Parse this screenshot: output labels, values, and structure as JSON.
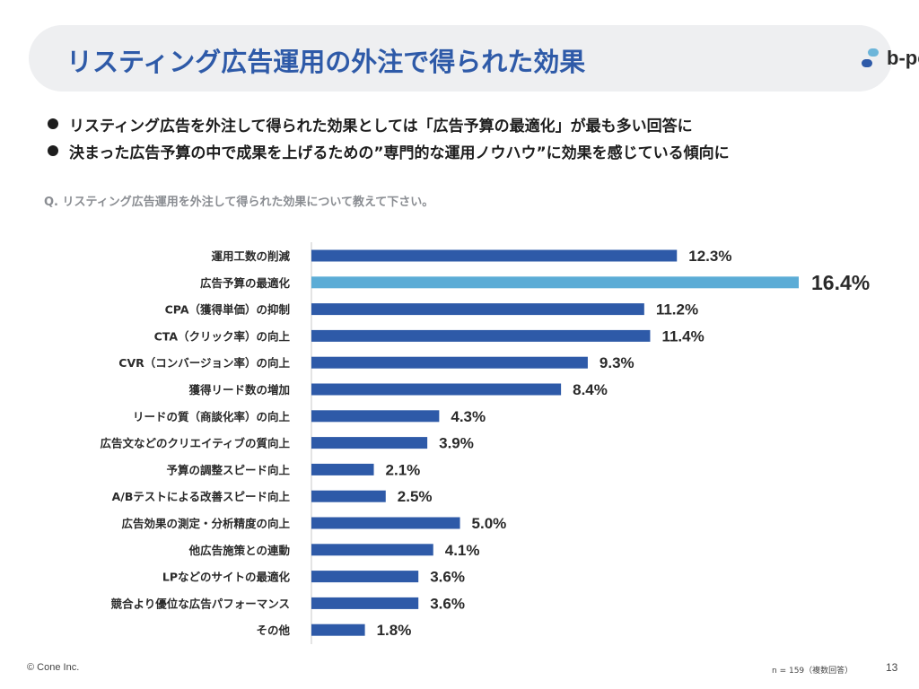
{
  "header": {
    "title": "リスティング広告運用の外注で得られた効果",
    "logo_text": "b-pos"
  },
  "bullets": [
    "リスティング広告を外注して得られた効果としては「広告予算の最適化」が最も多い回答に",
    "決まった広告予算の中で成果を上げるための”専門的な運用ノウハウ”に効果を感じている傾向に"
  ],
  "question": "Q. リスティング広告運用を外注して得られた効果について教えて下さい。",
  "colors": {
    "bar": "#2e5aa8",
    "highlight": "#5bacd6",
    "title": "#2e5aa8"
  },
  "chart_data": {
    "type": "bar",
    "orientation": "horizontal",
    "categories": [
      "運用工数の削減",
      "広告予算の最適化",
      "CPA（獲得単価）の抑制",
      "CTA（クリック率）の向上",
      "CVR（コンバージョン率）の向上",
      "獲得リード数の増加",
      "リードの質（商談化率）の向上",
      "広告文などのクリエイティブの質向上",
      "予算の調整スピード向上",
      "A/Bテストによる改善スピード向上",
      "広告効果の測定・分析精度の向上",
      "他広告施策との連動",
      "LPなどのサイトの最適化",
      "競合より優位な広告パフォーマンス",
      "その他"
    ],
    "values": [
      12.3,
      16.4,
      11.2,
      11.4,
      9.3,
      8.4,
      4.3,
      3.9,
      2.1,
      2.5,
      5.0,
      4.1,
      3.6,
      3.6,
      1.8
    ],
    "value_labels": [
      "12.3%",
      "16.4%",
      "11.2%",
      "11.4%",
      "9.3%",
      "8.4%",
      "4.3%",
      "3.9%",
      "2.1%",
      "2.5%",
      "5.0%",
      "4.1%",
      "3.6%",
      "3.6%",
      "1.8%"
    ],
    "highlight_index": 1,
    "xlim": [
      0,
      16.4
    ],
    "title": "",
    "xlabel": "",
    "ylabel": "",
    "grid": false,
    "legend": "none"
  },
  "footer": {
    "copyright": "© Cone Inc.",
    "note": "n = 159（複数回答）",
    "page": "13"
  }
}
